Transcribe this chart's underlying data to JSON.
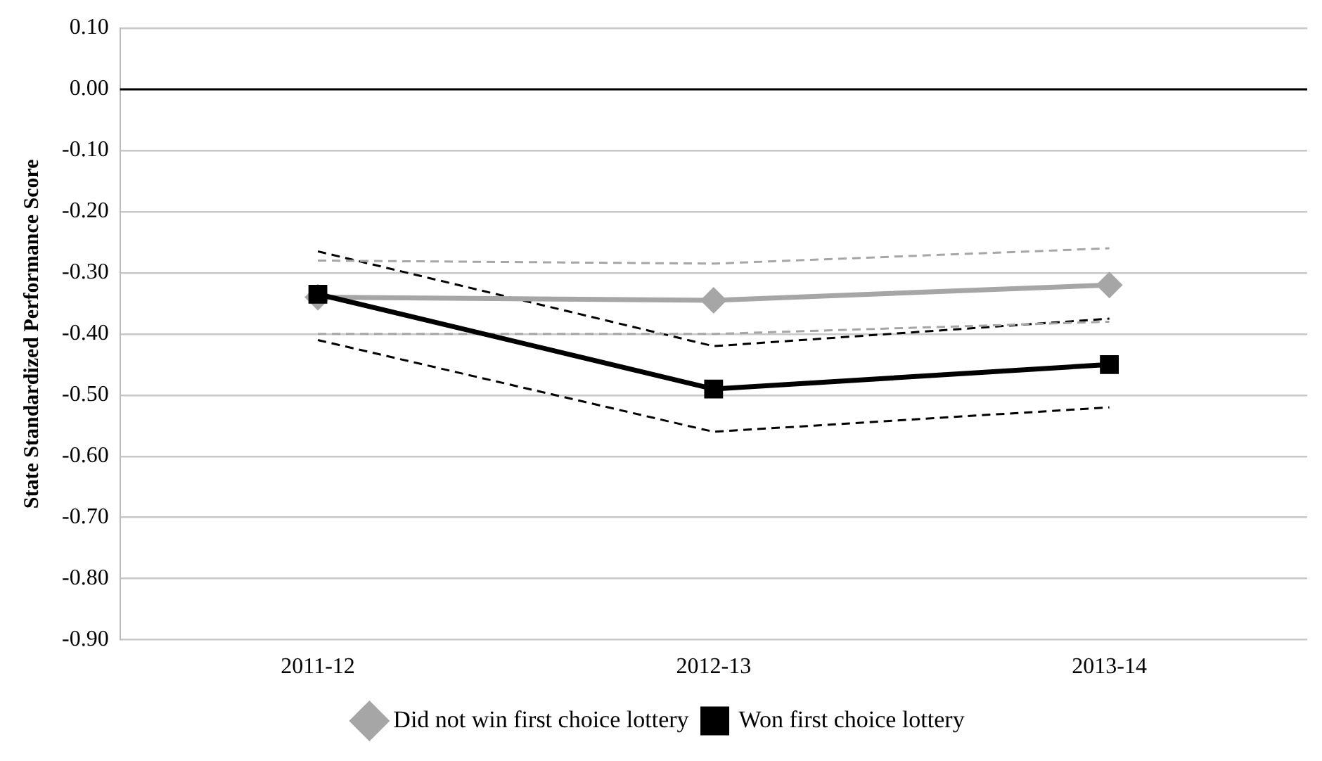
{
  "chart_data": {
    "type": "line",
    "ylabel": "State Standardized Performance Score",
    "categories": [
      "2011-12",
      "2012-13",
      "2013-14"
    ],
    "series": [
      {
        "name": "Did not win first choice lottery",
        "color": "#a6a6a6",
        "marker": "diamond",
        "line_style": "solid",
        "values": [
          -0.34,
          -0.345,
          -0.32
        ]
      },
      {
        "name": "Won first choice lottery",
        "color": "#000000",
        "marker": "square",
        "line_style": "solid",
        "values": [
          -0.335,
          -0.49,
          -0.45
        ]
      },
      {
        "color": "#a6a6a6",
        "marker": "none",
        "line_style": "dashed",
        "values": [
          -0.28,
          -0.285,
          -0.26
        ]
      },
      {
        "color": "#a6a6a6",
        "marker": "none",
        "line_style": "dashed",
        "values": [
          -0.4,
          -0.4,
          -0.38
        ]
      },
      {
        "color": "#000000",
        "marker": "none",
        "line_style": "dashed",
        "values": [
          -0.265,
          -0.42,
          -0.375
        ]
      },
      {
        "color": "#000000",
        "marker": "none",
        "line_style": "dashed",
        "values": [
          -0.41,
          -0.56,
          -0.52
        ]
      }
    ],
    "ylim": [
      -0.9,
      0.1
    ],
    "yticks": [
      {
        "value": 0.1,
        "label": "0.10"
      },
      {
        "value": 0,
        "label": "0.00"
      },
      {
        "value": -0.1,
        "label": "-0.10"
      },
      {
        "value": -0.2,
        "label": "-0.20"
      },
      {
        "value": -0.3,
        "label": "-0.30"
      },
      {
        "value": -0.4,
        "label": "-0.40"
      },
      {
        "value": -0.5,
        "label": "-0.50"
      },
      {
        "value": -0.6,
        "label": "-0.60"
      },
      {
        "value": -0.7,
        "label": "-0.70"
      },
      {
        "value": -0.8,
        "label": "-0.80"
      },
      {
        "value": -0.9,
        "label": "-0.90"
      }
    ],
    "grid": "y",
    "legend": "bottom",
    "ref_lines": [
      {
        "axis": "y",
        "value": 0,
        "color": "#000000",
        "line_style": "solid"
      }
    ]
  }
}
